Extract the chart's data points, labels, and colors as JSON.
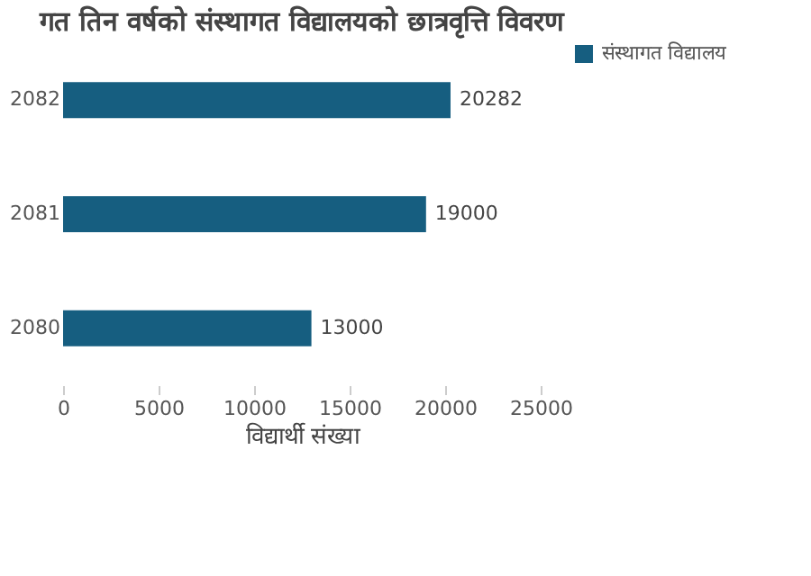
{
  "chart_data": {
    "type": "bar",
    "orientation": "horizontal",
    "title": "गत तिन वर्षको संस्थागत विद्यालयको छात्रवृत्ति विवरण",
    "xlabel": "विद्यार्थी संख्या",
    "categories": [
      "2082",
      "2081",
      "2080"
    ],
    "series": [
      {
        "name": "संस्थागत विद्यालय",
        "color": "#165e80",
        "values": [
          20282,
          19000,
          13000
        ]
      }
    ],
    "xlim": [
      0,
      25000
    ],
    "xticks": [
      0,
      5000,
      10000,
      15000,
      20000,
      25000
    ],
    "data_labels": true,
    "grid": false,
    "legend": "right"
  }
}
